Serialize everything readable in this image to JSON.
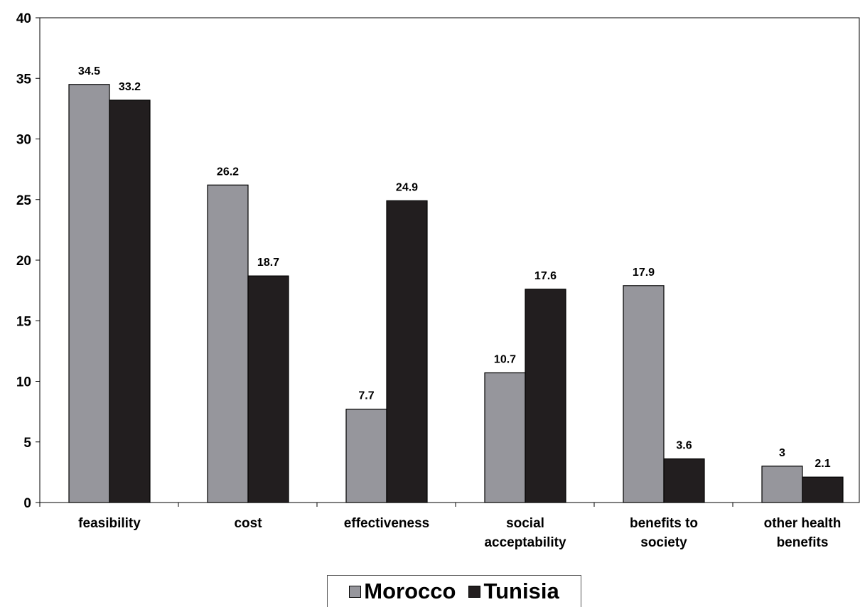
{
  "chart_data": {
    "type": "bar",
    "categories": [
      [
        "feasibility"
      ],
      [
        "cost"
      ],
      [
        "effectiveness"
      ],
      [
        "social",
        "acceptability"
      ],
      [
        "benefits to",
        "society"
      ],
      [
        "other health",
        "benefits"
      ]
    ],
    "series": [
      {
        "name": "Morocco",
        "color": "#96969c",
        "values": [
          34.5,
          26.2,
          7.7,
          10.7,
          17.9,
          3
        ],
        "labels": [
          "34.5",
          "26.2",
          "7.7",
          "10.7",
          "17.9",
          "3"
        ]
      },
      {
        "name": "Tunisia",
        "color": "#221e1f",
        "values": [
          33.2,
          18.7,
          24.9,
          17.6,
          3.6,
          2.1
        ],
        "labels": [
          "33.2",
          "18.7",
          "24.9",
          "17.6",
          "3.6",
          "2.1"
        ]
      }
    ],
    "yticks": [
      "0",
      "5",
      "10",
      "15",
      "20",
      "25",
      "30",
      "35",
      "40"
    ],
    "ylim": [
      0,
      40
    ],
    "title": "",
    "xlabel": "",
    "ylabel": "",
    "grid": false,
    "legend_position": "bottom-center"
  },
  "legend": {
    "items": [
      {
        "label": "Morocco",
        "color": "#96969c"
      },
      {
        "label": "Tunisia",
        "color": "#221e1f"
      }
    ]
  }
}
